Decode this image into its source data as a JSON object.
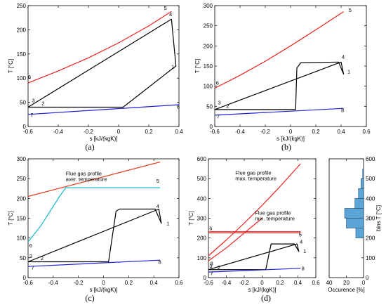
{
  "chart_data": [
    {
      "id": "a",
      "type": "line",
      "caption": "(a)",
      "xlabel": "s [kJ/(kgK)]",
      "ylabel": "T [°C]",
      "xlim": [
        -0.6,
        0.4
      ],
      "ylim": [
        0,
        250
      ],
      "xticks": [
        "-0.6",
        "-0.4",
        "-0.2",
        "0",
        "0.2",
        "0.4"
      ],
      "yticks": [
        "0",
        "50",
        "100",
        "150",
        "200",
        "250"
      ],
      "series": [
        {
          "color": "#e8231e",
          "x": [
            -0.6,
            -0.4,
            -0.2,
            0.0,
            0.2,
            0.35
          ],
          "y": [
            90,
            115,
            142,
            173,
            208,
            238
          ]
        },
        {
          "color": "#000000",
          "x": [
            -0.6,
            0.03,
            0.35,
            0.38,
            0.35,
            -0.6
          ],
          "y": [
            40,
            40,
            118,
            125,
            222,
            40
          ]
        },
        {
          "color": "#1f1fd6",
          "x": [
            -0.6,
            0.4
          ],
          "y": [
            25,
            45
          ]
        }
      ],
      "annotations": [
        {
          "text": "5",
          "x": 0.3,
          "y": 241
        },
        {
          "text": "4",
          "x": 0.335,
          "y": 228
        },
        {
          "text": "1",
          "x": 0.35,
          "y": 120
        },
        {
          "text": "6",
          "x": -0.6,
          "y": 99
        },
        {
          "text": "3",
          "x": -0.575,
          "y": 50
        },
        {
          "text": "2",
          "x": -0.51,
          "y": 44
        },
        {
          "text": "7",
          "x": -0.585,
          "y": 20
        },
        {
          "text": "8",
          "x": 0.385,
          "y": 37
        }
      ]
    },
    {
      "id": "b",
      "type": "line",
      "caption": "(b)",
      "xlabel": "s [kJ/(kgK)]",
      "ylabel": "T [°C]",
      "xlim": [
        -0.6,
        0.6
      ],
      "ylim": [
        0,
        300
      ],
      "xticks": [
        "-0.6",
        "-0.4",
        "-0.2",
        "0",
        "0.2",
        "0.4",
        "0.6"
      ],
      "yticks": [
        "0",
        "50",
        "100",
        "150",
        "200",
        "250",
        "300"
      ],
      "series": [
        {
          "color": "#e8231e",
          "x": [
            -0.6,
            -0.4,
            -0.2,
            0.0,
            0.2,
            0.42
          ],
          "y": [
            95,
            127,
            162,
            200,
            240,
            285
          ]
        },
        {
          "color": "#000000",
          "x": [
            -0.6,
            0.04,
            0.05,
            0.08,
            0.38,
            0.42,
            0.4,
            -0.6
          ],
          "y": [
            42,
            42,
            145,
            158,
            160,
            130,
            160,
            42
          ]
        },
        {
          "color": "#1f1fd6",
          "x": [
            -0.6,
            0.42
          ],
          "y": [
            28,
            45
          ]
        }
      ],
      "annotations": [
        {
          "text": "5",
          "x": 0.46,
          "y": 284
        },
        {
          "text": "4",
          "x": 0.405,
          "y": 168
        },
        {
          "text": "1",
          "x": 0.45,
          "y": 132
        },
        {
          "text": "6",
          "x": -0.59,
          "y": 104
        },
        {
          "text": "3",
          "x": -0.575,
          "y": 55
        },
        {
          "text": "2",
          "x": -0.51,
          "y": 46
        },
        {
          "text": "7",
          "x": -0.585,
          "y": 20
        },
        {
          "text": "8",
          "x": 0.4,
          "y": 36
        }
      ]
    },
    {
      "id": "c",
      "type": "line",
      "caption": "(c)",
      "xlabel": "s [kJ/(kgK)]",
      "ylabel": "T [°C]",
      "xlim": [
        -0.6,
        0.6
      ],
      "ylim": [
        0,
        300
      ],
      "xticks": [
        "-0.6",
        "-0.4",
        "-0.2",
        "0",
        "0.2",
        "0.4",
        "0.6"
      ],
      "yticks": [
        "0",
        "50",
        "100",
        "150",
        "200",
        "250",
        "300"
      ],
      "series": [
        {
          "color": "#e0401e",
          "x": [
            -0.6,
            0.45
          ],
          "y": [
            205,
            292
          ]
        },
        {
          "color": "#18b8d0",
          "x": [
            -0.6,
            -0.5,
            -0.35,
            -0.3,
            0.45
          ],
          "y": [
            90,
            130,
            205,
            227,
            227
          ]
        },
        {
          "color": "#000000",
          "x": [
            -0.6,
            0.04,
            0.1,
            0.13,
            0.41,
            0.46,
            0.44,
            -0.6
          ],
          "y": [
            40,
            40,
            168,
            173,
            173,
            137,
            173,
            40
          ]
        },
        {
          "color": "#1f1fd6",
          "x": [
            -0.6,
            0.45
          ],
          "y": [
            28,
            44
          ]
        }
      ],
      "annotations": [
        {
          "text": "Flue gas profile",
          "x": -0.3,
          "y": 258
        },
        {
          "text": "aver. temperature",
          "x": -0.3,
          "y": 244
        },
        {
          "text": "5",
          "x": 0.42,
          "y": 240
        },
        {
          "text": "4",
          "x": 0.42,
          "y": 176
        },
        {
          "text": "1",
          "x": 0.5,
          "y": 132
        },
        {
          "text": "6",
          "x": -0.59,
          "y": 76
        },
        {
          "text": "3",
          "x": -0.59,
          "y": 50
        },
        {
          "text": "2",
          "x": -0.5,
          "y": 44
        },
        {
          "text": "7",
          "x": -0.575,
          "y": 20
        },
        {
          "text": "8",
          "x": 0.435,
          "y": 35
        }
      ]
    },
    {
      "id": "d",
      "type": "line",
      "caption": "(d)",
      "xlabel": "s [kJ/(kgK)]",
      "ylabel": "T [°C]",
      "xlim": [
        -0.6,
        0.6
      ],
      "ylim": [
        0,
        600
      ],
      "xticks": [
        "-0.6",
        "-0.4",
        "-0.2",
        "0",
        "0.2",
        "0.4",
        "0.6"
      ],
      "yticks": [
        "0",
        "100",
        "200",
        "300",
        "400",
        "500",
        "600"
      ],
      "series": [
        {
          "color": "#e8231e",
          "x": [
            -0.6,
            -0.4,
            -0.2,
            0.0,
            0.2,
            0.43
          ],
          "y": [
            110,
            190,
            275,
            365,
            460,
            575
          ]
        },
        {
          "color": "#e8231e",
          "x": [
            -0.6,
            -0.4,
            -0.2,
            0.0
          ],
          "y": [
            85,
            150,
            225,
            300
          ]
        },
        {
          "color": "#e8231e",
          "x": [
            -0.6,
            0.43
          ],
          "y": [
            232,
            232
          ]
        },
        {
          "color": "#e8231e",
          "x": [
            -0.6,
            0.43
          ],
          "y": [
            226,
            226
          ]
        },
        {
          "color": "#000000",
          "x": [
            -0.6,
            0.04,
            0.1,
            0.36,
            0.41,
            0.39,
            -0.6
          ],
          "y": [
            40,
            40,
            170,
            170,
            132,
            170,
            40
          ]
        },
        {
          "color": "#1f1fd6",
          "x": [
            -0.6,
            0.43
          ],
          "y": [
            28,
            47
          ]
        }
      ],
      "annotations": [
        {
          "text": "Flue gas profile",
          "x": -0.3,
          "y": 520
        },
        {
          "text": "max. temperature",
          "x": -0.3,
          "y": 492
        },
        {
          "text": "Flue gas profile",
          "x": -0.08,
          "y": 318
        },
        {
          "text": "min. temperature",
          "x": -0.08,
          "y": 290
        },
        {
          "text": "6",
          "x": -0.59,
          "y": 240
        },
        {
          "text": "5",
          "x": 0.41,
          "y": 208
        },
        {
          "text": "8",
          "x": -0.58,
          "y": 62
        },
        {
          "text": "4",
          "x": 0.42,
          "y": 172
        },
        {
          "text": "1",
          "x": 0.46,
          "y": 125
        },
        {
          "text": "3",
          "x": -0.59,
          "y": 50
        },
        {
          "text": "2",
          "x": -0.5,
          "y": 42
        },
        {
          "text": "7",
          "x": -0.58,
          "y": 12
        },
        {
          "text": "8",
          "x": 0.44,
          "y": 38
        }
      ]
    },
    {
      "id": "d-hist",
      "type": "bar",
      "orientation": "horizontal",
      "xlabel": "Occurence [%]",
      "ylabel": "bins T [°C]",
      "xlim": [
        40,
        0
      ],
      "ylim": [
        0,
        600
      ],
      "xticks": [
        "40",
        "20",
        "0"
      ],
      "yticks": [
        "0",
        "100",
        "200",
        "300",
        "400",
        "500",
        "600"
      ],
      "color": "#5aa5d6",
      "bins": [
        {
          "lo": 200,
          "hi": 250,
          "value": 9
        },
        {
          "lo": 250,
          "hi": 300,
          "value": 20
        },
        {
          "lo": 300,
          "hi": 350,
          "value": 22
        },
        {
          "lo": 350,
          "hi": 400,
          "value": 10
        },
        {
          "lo": 400,
          "hi": 450,
          "value": 6
        },
        {
          "lo": 450,
          "hi": 500,
          "value": 3
        },
        {
          "lo": 500,
          "hi": 550,
          "value": 1
        }
      ]
    }
  ]
}
